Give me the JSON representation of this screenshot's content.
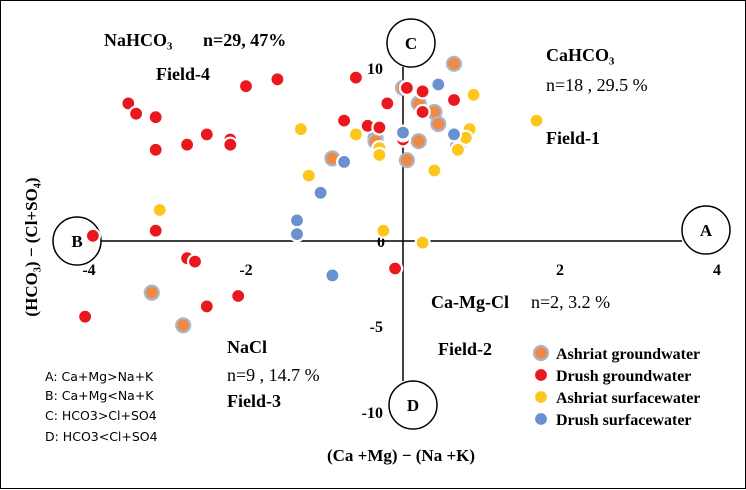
{
  "chart_data": {
    "type": "scatter",
    "xlabel": "(Ca +Mg) − (Na +K)",
    "ylabel": "(HCO₃) − (Cl+SO₄)",
    "xlim": [
      -4.2,
      4.1
    ],
    "ylim": [
      -11.5,
      12
    ],
    "x_ticks": [
      -4,
      -2,
      0,
      2,
      4
    ],
    "x_tick_labels": [
      "-4",
      "-2",
      "0",
      "2",
      "4"
    ],
    "y_ticks": [
      10,
      5,
      0,
      -5,
      -10
    ],
    "y_tick_labels": [
      "10",
      "5",
      "0",
      "-5",
      "-10"
    ],
    "grid": false,
    "legend_position": "bottom-right",
    "axis_ends": {
      "right": "A",
      "left": "B",
      "top": "C",
      "bottom": "D"
    },
    "fields": [
      {
        "name": "Field-1",
        "type_label": "CaHCO₃",
        "stats": "n=18 , 29.5 %"
      },
      {
        "name": "Field-2",
        "type_label": "Ca-Mg-Cl",
        "stats": "n=2, 3.2 %"
      },
      {
        "name": "Field-3",
        "type_label": "NaCl",
        "stats": "n=9 , 14.7 %"
      },
      {
        "name": "Field-4",
        "type_label": "NaHCO₃",
        "stats": "n=29, 47%"
      }
    ],
    "definitions": [
      "A: Ca+Mg>Na+K",
      "B: Ca+Mg<Na+K",
      "C: HCO3>Cl+SO4",
      "D: HCO3<Cl+SO4"
    ],
    "series": [
      {
        "name": "Ashriat groundwater",
        "color": "#ee8a45",
        "ring": "#a9b7cc",
        "points": [
          [
            0.65,
            10.3
          ],
          [
            0.0,
            8.9
          ],
          [
            0.2,
            8.0
          ],
          [
            0.4,
            7.5
          ],
          [
            0.45,
            6.8
          ],
          [
            0.2,
            5.8
          ],
          [
            0.7,
            5.5
          ],
          [
            -0.35,
            6.0
          ],
          [
            -0.35,
            5.8
          ],
          [
            -0.9,
            4.8
          ],
          [
            0.05,
            4.7
          ],
          [
            -3.2,
            -3.0
          ],
          [
            -2.8,
            -4.9
          ],
          [
            -0.1,
            -1.6
          ]
        ]
      },
      {
        "name": "Drush groundwater",
        "color": "#e8181e",
        "ring": "#ffffff",
        "points": [
          [
            -3.5,
            8.0
          ],
          [
            -3.4,
            7.4
          ],
          [
            -3.15,
            7.2
          ],
          [
            -3.15,
            5.3
          ],
          [
            -2.75,
            5.6
          ],
          [
            -2.5,
            6.2
          ],
          [
            -2.2,
            5.9
          ],
          [
            -2.2,
            5.6
          ],
          [
            -2.0,
            9.0
          ],
          [
            -1.6,
            9.4
          ],
          [
            -0.6,
            9.5
          ],
          [
            -0.75,
            7.0
          ],
          [
            -0.45,
            6.7
          ],
          [
            -0.3,
            6.6
          ],
          [
            0.05,
            8.9
          ],
          [
            0.25,
            8.7
          ],
          [
            0.65,
            8.2
          ],
          [
            -0.2,
            8.0
          ],
          [
            -3.95,
            0.3
          ],
          [
            -3.15,
            0.6
          ],
          [
            -2.75,
            -1.0
          ],
          [
            -2.65,
            -1.2
          ],
          [
            -2.1,
            -3.2
          ],
          [
            -2.5,
            -3.8
          ],
          [
            -4.05,
            -4.4
          ],
          [
            0.0,
            5.9
          ],
          [
            0.0,
            6.2
          ],
          [
            0.25,
            7.5
          ],
          [
            -0.1,
            -1.6
          ]
        ]
      },
      {
        "name": "Ashriat surfacewater",
        "color": "#fec51a",
        "ring": "#ffffff",
        "points": [
          [
            1.7,
            7.0
          ],
          [
            0.9,
            8.5
          ],
          [
            0.85,
            6.5
          ],
          [
            0.7,
            5.3
          ],
          [
            0.4,
            4.1
          ],
          [
            -0.3,
            5.4
          ],
          [
            -0.6,
            6.2
          ],
          [
            -1.3,
            6.5
          ],
          [
            -1.2,
            3.8
          ],
          [
            -0.3,
            5.0
          ],
          [
            -3.1,
            1.8
          ],
          [
            -0.25,
            0.6
          ],
          [
            0.25,
            -0.1
          ],
          [
            0.8,
            6.0
          ]
        ]
      },
      {
        "name": "Drush surfacewater",
        "color": "#6a91cf",
        "ring": "#ffffff",
        "points": [
          [
            0.45,
            9.1
          ],
          [
            0.65,
            6.2
          ],
          [
            0.0,
            6.3
          ],
          [
            -0.75,
            4.6
          ],
          [
            -1.05,
            2.8
          ],
          [
            -1.35,
            1.2
          ],
          [
            -1.35,
            0.4
          ],
          [
            -0.9,
            -2.0
          ]
        ]
      }
    ]
  }
}
